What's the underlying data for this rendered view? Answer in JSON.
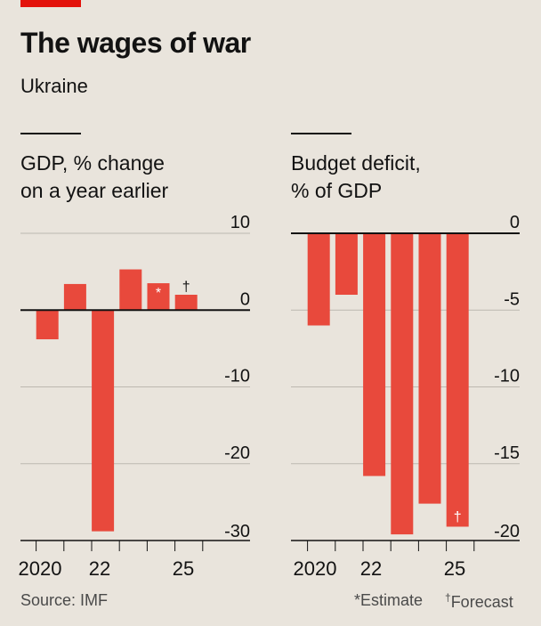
{
  "header": {
    "title": "The wages of war",
    "subtitle": "Ukraine"
  },
  "colors": {
    "bar": "#e8493c",
    "grid": "#bcb8b0",
    "zero": "#121212",
    "accent": "#e3120b"
  },
  "chart_data": [
    {
      "type": "bar",
      "title": "GDP, % change\non a year earlier",
      "categories": [
        "2019",
        "2020",
        "2021",
        "2022",
        "2023",
        "2024",
        "2025",
        "2026"
      ],
      "x_tick_labels": [
        "2020",
        "22",
        "25"
      ],
      "x_tick_label_years": [
        "2020",
        "2022",
        "2025"
      ],
      "values": [
        null,
        -3.8,
        3.4,
        -28.8,
        5.3,
        3.5,
        2.0,
        null
      ],
      "markers": {
        "2024": "*",
        "2025": "†"
      },
      "y_ticks": [
        10,
        0,
        -10,
        -20,
        -30
      ],
      "y_tick_labels": [
        "10",
        "0",
        "-10",
        "-20",
        "-30"
      ],
      "ylim": [
        -30,
        10
      ]
    },
    {
      "type": "bar",
      "title": "Budget deficit,\n% of GDP",
      "categories": [
        "2019",
        "2020",
        "2021",
        "2022",
        "2023",
        "2024",
        "2025",
        "2026"
      ],
      "x_tick_labels": [
        "2020",
        "22",
        "25"
      ],
      "x_tick_label_years": [
        "2020",
        "2022",
        "2025"
      ],
      "values": [
        null,
        -6.0,
        -4.0,
        -15.8,
        -19.6,
        -17.6,
        -19.1,
        null
      ],
      "markers": {
        "2025": "†"
      },
      "y_ticks": [
        0,
        -5,
        -10,
        -15,
        -20
      ],
      "y_tick_labels": [
        "0",
        "-5",
        "-10",
        "-15",
        "-20"
      ],
      "ylim": [
        -20,
        0
      ]
    }
  ],
  "footer": {
    "source": "Source: IMF",
    "estimate_mark": "*",
    "estimate_label": "Estimate",
    "forecast_mark": "†",
    "forecast_label": "Forecast"
  }
}
